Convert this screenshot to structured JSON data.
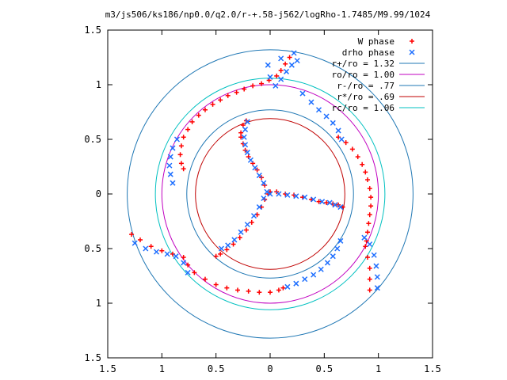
{
  "chart_data": {
    "type": "scatter",
    "title": "m3/js506/ks186/np0.0/q2.0/r-+.58-j562/logRho-1.7485/M9.99/1024",
    "xlim": [
      -1.5,
      1.5
    ],
    "ylim": [
      -1.5,
      1.5
    ],
    "x_ticks": [
      {
        "value": -1.5,
        "label": "1.5"
      },
      {
        "value": -1.0,
        "label": "1"
      },
      {
        "value": -0.5,
        "label": "0.5"
      },
      {
        "value": 0,
        "label": "0"
      },
      {
        "value": 0.5,
        "label": "0.5"
      },
      {
        "value": 1.0,
        "label": "1"
      },
      {
        "value": 1.5,
        "label": "1.5"
      }
    ],
    "y_ticks": [
      {
        "value": 1.5,
        "label": "1.5"
      },
      {
        "value": 1.0,
        "label": "1"
      },
      {
        "value": 0.5,
        "label": "0.5"
      },
      {
        "value": 0,
        "label": "0"
      },
      {
        "value": -0.5,
        "label": "0.5"
      },
      {
        "value": -1.0,
        "label": "1"
      },
      {
        "value": -1.5,
        "label": "1.5"
      }
    ],
    "grid": false,
    "legend_position": "top-right",
    "series": [
      {
        "name": "W phase",
        "marker": "+",
        "color": "#ff0000",
        "points": [
          [
            0.0,
            0.02
          ],
          [
            0.06,
            0.02
          ],
          [
            0.14,
            0.0
          ],
          [
            0.22,
            -0.01
          ],
          [
            0.3,
            -0.03
          ],
          [
            0.38,
            -0.05
          ],
          [
            0.45,
            -0.07
          ],
          [
            0.52,
            -0.08
          ],
          [
            0.58,
            -0.09
          ],
          [
            0.63,
            -0.1
          ],
          [
            0.67,
            -0.12
          ],
          [
            -0.02,
            0.0
          ],
          [
            -0.05,
            0.08
          ],
          [
            -0.08,
            0.15
          ],
          [
            -0.12,
            0.22
          ],
          [
            -0.16,
            0.28
          ],
          [
            -0.2,
            0.34
          ],
          [
            -0.23,
            0.4
          ],
          [
            -0.25,
            0.46
          ],
          [
            -0.27,
            0.52
          ],
          [
            -0.27,
            0.56
          ],
          [
            -0.25,
            0.63
          ],
          [
            -0.22,
            0.67
          ],
          [
            -0.05,
            -0.05
          ],
          [
            -0.08,
            -0.12
          ],
          [
            -0.12,
            -0.19
          ],
          [
            -0.17,
            -0.26
          ],
          [
            -0.22,
            -0.33
          ],
          [
            -0.28,
            -0.4
          ],
          [
            -0.34,
            -0.46
          ],
          [
            -0.4,
            -0.51
          ],
          [
            -0.46,
            -0.55
          ],
          [
            -0.5,
            -0.57
          ],
          [
            -1.28,
            -0.37
          ],
          [
            -1.2,
            -0.42
          ],
          [
            -1.1,
            -0.48
          ],
          [
            -1.0,
            -0.52
          ],
          [
            -0.9,
            -0.55
          ],
          [
            -0.8,
            -0.58
          ],
          [
            -0.76,
            -0.65
          ],
          [
            -0.7,
            -0.72
          ],
          [
            -0.6,
            -0.78
          ],
          [
            -0.5,
            -0.83
          ],
          [
            -0.4,
            -0.86
          ],
          [
            -0.3,
            -0.88
          ],
          [
            -0.2,
            -0.89
          ],
          [
            -0.1,
            -0.9
          ],
          [
            0.0,
            -0.9
          ],
          [
            0.08,
            -0.88
          ],
          [
            0.12,
            -0.86
          ],
          [
            -0.8,
            0.23
          ],
          [
            -0.82,
            0.28
          ],
          [
            -0.83,
            0.36
          ],
          [
            -0.82,
            0.44
          ],
          [
            -0.8,
            0.52
          ],
          [
            -0.76,
            0.59
          ],
          [
            -0.72,
            0.66
          ],
          [
            -0.66,
            0.72
          ],
          [
            -0.6,
            0.77
          ],
          [
            -0.53,
            0.82
          ],
          [
            -0.46,
            0.86
          ],
          [
            -0.39,
            0.9
          ],
          [
            -0.31,
            0.93
          ],
          [
            -0.24,
            0.96
          ],
          [
            -0.16,
            0.99
          ],
          [
            -0.08,
            1.01
          ],
          [
            -0.01,
            1.04
          ],
          [
            0.06,
            1.08
          ],
          [
            0.1,
            1.13
          ],
          [
            0.14,
            1.19
          ],
          [
            0.18,
            1.25
          ],
          [
            0.63,
            0.52
          ],
          [
            0.7,
            0.47
          ],
          [
            0.76,
            0.41
          ],
          [
            0.81,
            0.34
          ],
          [
            0.85,
            0.27
          ],
          [
            0.88,
            0.2
          ],
          [
            0.9,
            0.13
          ],
          [
            0.92,
            0.05
          ],
          [
            0.93,
            -0.03
          ],
          [
            0.93,
            -0.11
          ],
          [
            0.92,
            -0.19
          ],
          [
            0.91,
            -0.27
          ],
          [
            0.9,
            -0.35
          ],
          [
            0.89,
            -0.43
          ],
          [
            0.88,
            -0.48
          ],
          [
            0.9,
            -0.58
          ],
          [
            0.92,
            -0.68
          ],
          [
            0.92,
            -0.78
          ],
          [
            0.92,
            -0.88
          ]
        ]
      },
      {
        "name": "drho phase",
        "marker": "x",
        "color": "#1e6fff",
        "points": [
          [
            0.0,
            0.0
          ],
          [
            0.08,
            0.0
          ],
          [
            0.16,
            -0.01
          ],
          [
            0.24,
            -0.02
          ],
          [
            0.32,
            -0.03
          ],
          [
            0.4,
            -0.05
          ],
          [
            0.48,
            -0.07
          ],
          [
            0.55,
            -0.08
          ],
          [
            0.6,
            -0.1
          ],
          [
            0.65,
            -0.12
          ],
          [
            -0.03,
            0.02
          ],
          [
            -0.06,
            0.1
          ],
          [
            -0.1,
            0.17
          ],
          [
            -0.14,
            0.24
          ],
          [
            -0.18,
            0.31
          ],
          [
            -0.21,
            0.38
          ],
          [
            -0.23,
            0.45
          ],
          [
            -0.24,
            0.52
          ],
          [
            -0.23,
            0.59
          ],
          [
            -0.21,
            0.66
          ],
          [
            -0.06,
            -0.04
          ],
          [
            -0.1,
            -0.12
          ],
          [
            -0.15,
            -0.2
          ],
          [
            -0.21,
            -0.28
          ],
          [
            -0.27,
            -0.35
          ],
          [
            -0.33,
            -0.42
          ],
          [
            -0.39,
            -0.47
          ],
          [
            -0.45,
            -0.5
          ],
          [
            -1.25,
            -0.45
          ],
          [
            -1.15,
            -0.5
          ],
          [
            -1.05,
            -0.53
          ],
          [
            -0.95,
            -0.55
          ],
          [
            -0.87,
            -0.57
          ],
          [
            -0.8,
            -0.63
          ],
          [
            -0.76,
            -0.72
          ],
          [
            -0.9,
            0.1
          ],
          [
            -0.92,
            0.18
          ],
          [
            -0.93,
            0.26
          ],
          [
            -0.92,
            0.34
          ],
          [
            -0.9,
            0.42
          ],
          [
            -0.86,
            0.5
          ],
          [
            0.0,
            1.07
          ],
          [
            0.05,
            0.99
          ],
          [
            0.1,
            1.05
          ],
          [
            0.15,
            1.12
          ],
          [
            0.2,
            1.18
          ],
          [
            0.25,
            1.22
          ],
          [
            0.22,
            1.29
          ],
          [
            0.1,
            1.24
          ],
          [
            -0.02,
            1.18
          ],
          [
            0.3,
            0.92
          ],
          [
            0.38,
            0.84
          ],
          [
            0.45,
            0.77
          ],
          [
            0.52,
            0.71
          ],
          [
            0.58,
            0.65
          ],
          [
            0.63,
            0.58
          ],
          [
            0.66,
            0.5
          ],
          [
            0.65,
            -0.43
          ],
          [
            0.62,
            -0.5
          ],
          [
            0.58,
            -0.57
          ],
          [
            0.53,
            -0.63
          ],
          [
            0.47,
            -0.69
          ],
          [
            0.4,
            -0.74
          ],
          [
            0.32,
            -0.78
          ],
          [
            0.24,
            -0.82
          ],
          [
            0.16,
            -0.85
          ],
          [
            0.87,
            -0.4
          ],
          [
            0.92,
            -0.46
          ],
          [
            0.96,
            -0.56
          ],
          [
            0.98,
            -0.66
          ],
          [
            0.99,
            -0.76
          ],
          [
            0.99,
            -0.86
          ]
        ]
      }
    ],
    "circles": [
      {
        "name": "r+/ro = 1.32",
        "r": 1.32,
        "color": "#1f77b4"
      },
      {
        "name": "ro/ro = 1.00",
        "r": 1.0,
        "color": "#c000c0"
      },
      {
        "name": "r-/ro = .77",
        "r": 0.77,
        "color": "#1f77b4"
      },
      {
        "name": "r*/ro = .69",
        "r": 0.69,
        "color": "#c00000"
      },
      {
        "name": "rc/ro = 1.06",
        "r": 1.06,
        "color": "#00c0c0"
      }
    ]
  }
}
